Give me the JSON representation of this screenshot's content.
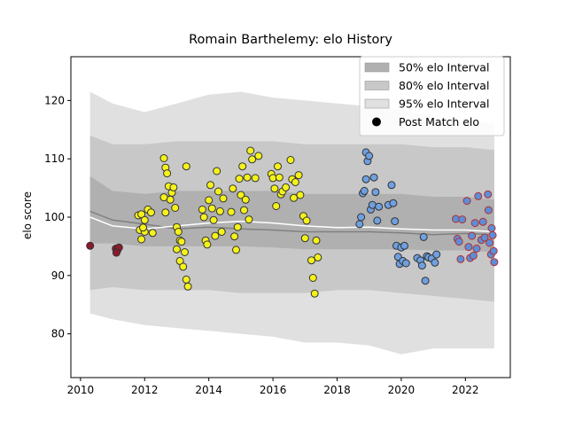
{
  "chart_data": {
    "type": "scatter",
    "title": "Romain Barthelemy: elo History",
    "xlabel": "",
    "ylabel": "elo score",
    "xlim": [
      2009.7,
      2023.4
    ],
    "ylim": [
      72.5,
      127.5
    ],
    "x_ticks": [
      2010,
      2012,
      2014,
      2016,
      2018,
      2020,
      2022
    ],
    "y_ticks": [
      80,
      90,
      100,
      110,
      120
    ],
    "grid": false,
    "legend_position": "top-right",
    "legend": [
      {
        "label": "50% elo Interval",
        "kind": "band",
        "color": "#b0b0b0"
      },
      {
        "label": "80% elo Interval",
        "kind": "band",
        "color": "#c8c8c8"
      },
      {
        "label": "95% elo Interval",
        "kind": "band",
        "color": "#e0e0e0"
      },
      {
        "label": "Post Match elo",
        "kind": "marker",
        "color": "#000000"
      }
    ],
    "bands": {
      "x": [
        2010.3,
        2011.0,
        2012.0,
        2013.0,
        2014.0,
        2015.0,
        2016.0,
        2017.0,
        2018.0,
        2019.0,
        2020.0,
        2021.0,
        2022.0,
        2022.9
      ],
      "median": [
        101.0,
        99.5,
        98.8,
        98.0,
        98.3,
        98.0,
        97.8,
        97.5,
        97.5,
        97.5,
        97.3,
        97.0,
        97.2,
        97.0
      ],
      "mean": [
        100.0,
        98.5,
        98.0,
        98.5,
        99.0,
        99.3,
        99.0,
        98.5,
        98.2,
        98.3,
        98.0,
        97.8,
        97.8,
        97.5
      ],
      "p50_lo": [
        95.5,
        95.5,
        95.0,
        95.0,
        95.0,
        95.0,
        94.8,
        94.5,
        94.5,
        94.5,
        94.5,
        94.3,
        94.3,
        94.0
      ],
      "p50_hi": [
        107.0,
        104.5,
        104.0,
        104.5,
        104.5,
        104.5,
        104.5,
        104.0,
        104.0,
        104.0,
        104.0,
        103.5,
        103.5,
        103.0
      ],
      "p80_lo": [
        87.5,
        88.0,
        87.5,
        87.5,
        87.5,
        87.0,
        87.0,
        87.0,
        87.5,
        87.5,
        87.0,
        86.5,
        86.0,
        85.5
      ],
      "p80_hi": [
        114.0,
        112.5,
        112.5,
        113.0,
        113.0,
        113.0,
        113.0,
        112.5,
        112.5,
        112.5,
        112.5,
        112.0,
        112.0,
        111.5
      ],
      "p95_lo": [
        83.5,
        82.5,
        81.5,
        81.0,
        80.5,
        80.0,
        79.5,
        78.5,
        78.5,
        78.0,
        76.5,
        77.5,
        77.5,
        77.5
      ],
      "p95_hi": [
        121.5,
        119.5,
        118.0,
        119.5,
        121.0,
        121.5,
        120.5,
        120.0,
        119.5,
        119.0,
        118.5,
        117.0,
        116.5,
        116.0
      ]
    },
    "series": [
      {
        "color": "#8b1a2a",
        "edge": "#333333",
        "points": [
          [
            2010.3,
            95.1
          ],
          [
            2011.1,
            94.6
          ],
          [
            2011.15,
            94.3
          ],
          [
            2011.2,
            94.8
          ],
          [
            2011.12,
            93.9
          ]
        ]
      },
      {
        "color": "#f5f21a",
        "edge": "#333333",
        "points": [
          [
            2011.8,
            100.3
          ],
          [
            2011.9,
            100.5
          ],
          [
            2012.0,
            99.5
          ],
          [
            2011.85,
            97.8
          ],
          [
            2011.9,
            96.2
          ],
          [
            2012.0,
            97.5
          ],
          [
            2012.1,
            101.3
          ],
          [
            2012.2,
            100.8
          ],
          [
            2012.25,
            97.3
          ],
          [
            2011.95,
            98.2
          ],
          [
            2012.6,
            110.1
          ],
          [
            2012.65,
            108.5
          ],
          [
            2012.7,
            107.5
          ],
          [
            2012.75,
            105.3
          ],
          [
            2012.8,
            103.0
          ],
          [
            2012.85,
            104.2
          ],
          [
            2012.9,
            105.1
          ],
          [
            2012.95,
            101.6
          ],
          [
            2012.6,
            103.4
          ],
          [
            2012.65,
            100.8
          ],
          [
            2013.0,
            98.3
          ],
          [
            2013.05,
            97.5
          ],
          [
            2013.1,
            96.0
          ],
          [
            2013.15,
            95.8
          ],
          [
            2013.0,
            94.5
          ],
          [
            2013.1,
            92.5
          ],
          [
            2013.2,
            91.5
          ],
          [
            2013.25,
            94.0
          ],
          [
            2013.3,
            89.3
          ],
          [
            2013.35,
            88.1
          ],
          [
            2013.3,
            108.7
          ],
          [
            2013.8,
            101.3
          ],
          [
            2013.85,
            100.0
          ],
          [
            2013.9,
            96.0
          ],
          [
            2013.95,
            95.3
          ],
          [
            2014.0,
            102.9
          ],
          [
            2014.05,
            105.5
          ],
          [
            2014.1,
            101.5
          ],
          [
            2014.15,
            99.5
          ],
          [
            2014.2,
            96.8
          ],
          [
            2014.25,
            107.9
          ],
          [
            2014.3,
            104.4
          ],
          [
            2014.35,
            101.0
          ],
          [
            2014.4,
            97.5
          ],
          [
            2014.45,
            103.2
          ],
          [
            2014.7,
            100.9
          ],
          [
            2014.75,
            104.9
          ],
          [
            2014.8,
            96.7
          ],
          [
            2014.85,
            94.4
          ],
          [
            2014.9,
            98.3
          ],
          [
            2014.95,
            106.6
          ],
          [
            2015.0,
            103.8
          ],
          [
            2015.05,
            108.7
          ],
          [
            2015.1,
            101.2
          ],
          [
            2015.15,
            103.0
          ],
          [
            2015.2,
            106.8
          ],
          [
            2015.25,
            99.6
          ],
          [
            2015.3,
            111.4
          ],
          [
            2015.35,
            109.9
          ],
          [
            2015.45,
            106.7
          ],
          [
            2015.55,
            110.5
          ],
          [
            2015.95,
            107.4
          ],
          [
            2016.0,
            106.7
          ],
          [
            2016.05,
            104.9
          ],
          [
            2016.1,
            101.9
          ],
          [
            2016.15,
            108.7
          ],
          [
            2016.2,
            106.8
          ],
          [
            2016.25,
            103.9
          ],
          [
            2016.3,
            104.4
          ],
          [
            2016.4,
            105.1
          ],
          [
            2016.55,
            109.8
          ],
          [
            2016.6,
            106.5
          ],
          [
            2016.65,
            103.3
          ],
          [
            2016.7,
            106.0
          ],
          [
            2016.8,
            107.2
          ],
          [
            2016.85,
            103.8
          ],
          [
            2016.95,
            100.2
          ],
          [
            2017.0,
            96.4
          ],
          [
            2017.05,
            99.4
          ],
          [
            2017.2,
            92.6
          ],
          [
            2017.25,
            89.6
          ],
          [
            2017.3,
            86.9
          ],
          [
            2017.35,
            96.0
          ],
          [
            2017.4,
            93.1
          ]
        ]
      },
      {
        "color": "#6fa0e0",
        "edge": "#333333",
        "points": [
          [
            2018.7,
            98.8
          ],
          [
            2018.75,
            100.0
          ],
          [
            2018.8,
            104.1
          ],
          [
            2018.85,
            104.5
          ],
          [
            2018.9,
            106.5
          ],
          [
            2018.95,
            109.6
          ],
          [
            2018.9,
            111.1
          ],
          [
            2019.0,
            110.5
          ],
          [
            2019.05,
            101.3
          ],
          [
            2019.1,
            102.1
          ],
          [
            2019.15,
            106.8
          ],
          [
            2019.2,
            104.3
          ],
          [
            2019.25,
            99.4
          ],
          [
            2019.3,
            101.8
          ],
          [
            2019.6,
            102.1
          ],
          [
            2019.7,
            105.5
          ],
          [
            2019.75,
            102.4
          ],
          [
            2019.8,
            99.3
          ],
          [
            2019.85,
            95.1
          ],
          [
            2019.9,
            93.2
          ],
          [
            2019.95,
            92.0
          ],
          [
            2020.0,
            94.8
          ],
          [
            2020.05,
            92.5
          ],
          [
            2020.1,
            95.1
          ],
          [
            2020.15,
            92.1
          ],
          [
            2020.5,
            93.0
          ],
          [
            2020.6,
            92.6
          ],
          [
            2020.65,
            91.7
          ],
          [
            2020.7,
            96.6
          ],
          [
            2020.75,
            89.1
          ],
          [
            2020.8,
            93.3
          ],
          [
            2020.85,
            93.1
          ],
          [
            2020.95,
            92.9
          ],
          [
            2021.05,
            92.2
          ],
          [
            2021.1,
            93.6
          ]
        ]
      },
      {
        "color": "#5b8ed9",
        "edge": "#b03030",
        "points": [
          [
            2021.7,
            99.7
          ],
          [
            2021.75,
            96.3
          ],
          [
            2021.8,
            95.8
          ],
          [
            2021.85,
            92.8
          ],
          [
            2021.9,
            99.6
          ],
          [
            2022.05,
            102.8
          ],
          [
            2022.1,
            94.9
          ],
          [
            2022.15,
            93.0
          ],
          [
            2022.2,
            96.8
          ],
          [
            2022.25,
            93.4
          ],
          [
            2022.3,
            99.0
          ],
          [
            2022.35,
            94.6
          ],
          [
            2022.4,
            103.6
          ],
          [
            2022.5,
            96.1
          ],
          [
            2022.55,
            99.2
          ],
          [
            2022.6,
            96.5
          ],
          [
            2022.7,
            103.9
          ],
          [
            2022.72,
            101.2
          ],
          [
            2022.75,
            95.6
          ],
          [
            2022.8,
            93.6
          ],
          [
            2022.82,
            98.1
          ],
          [
            2022.85,
            96.9
          ],
          [
            2022.88,
            94.2
          ],
          [
            2022.9,
            92.3
          ]
        ]
      }
    ]
  }
}
